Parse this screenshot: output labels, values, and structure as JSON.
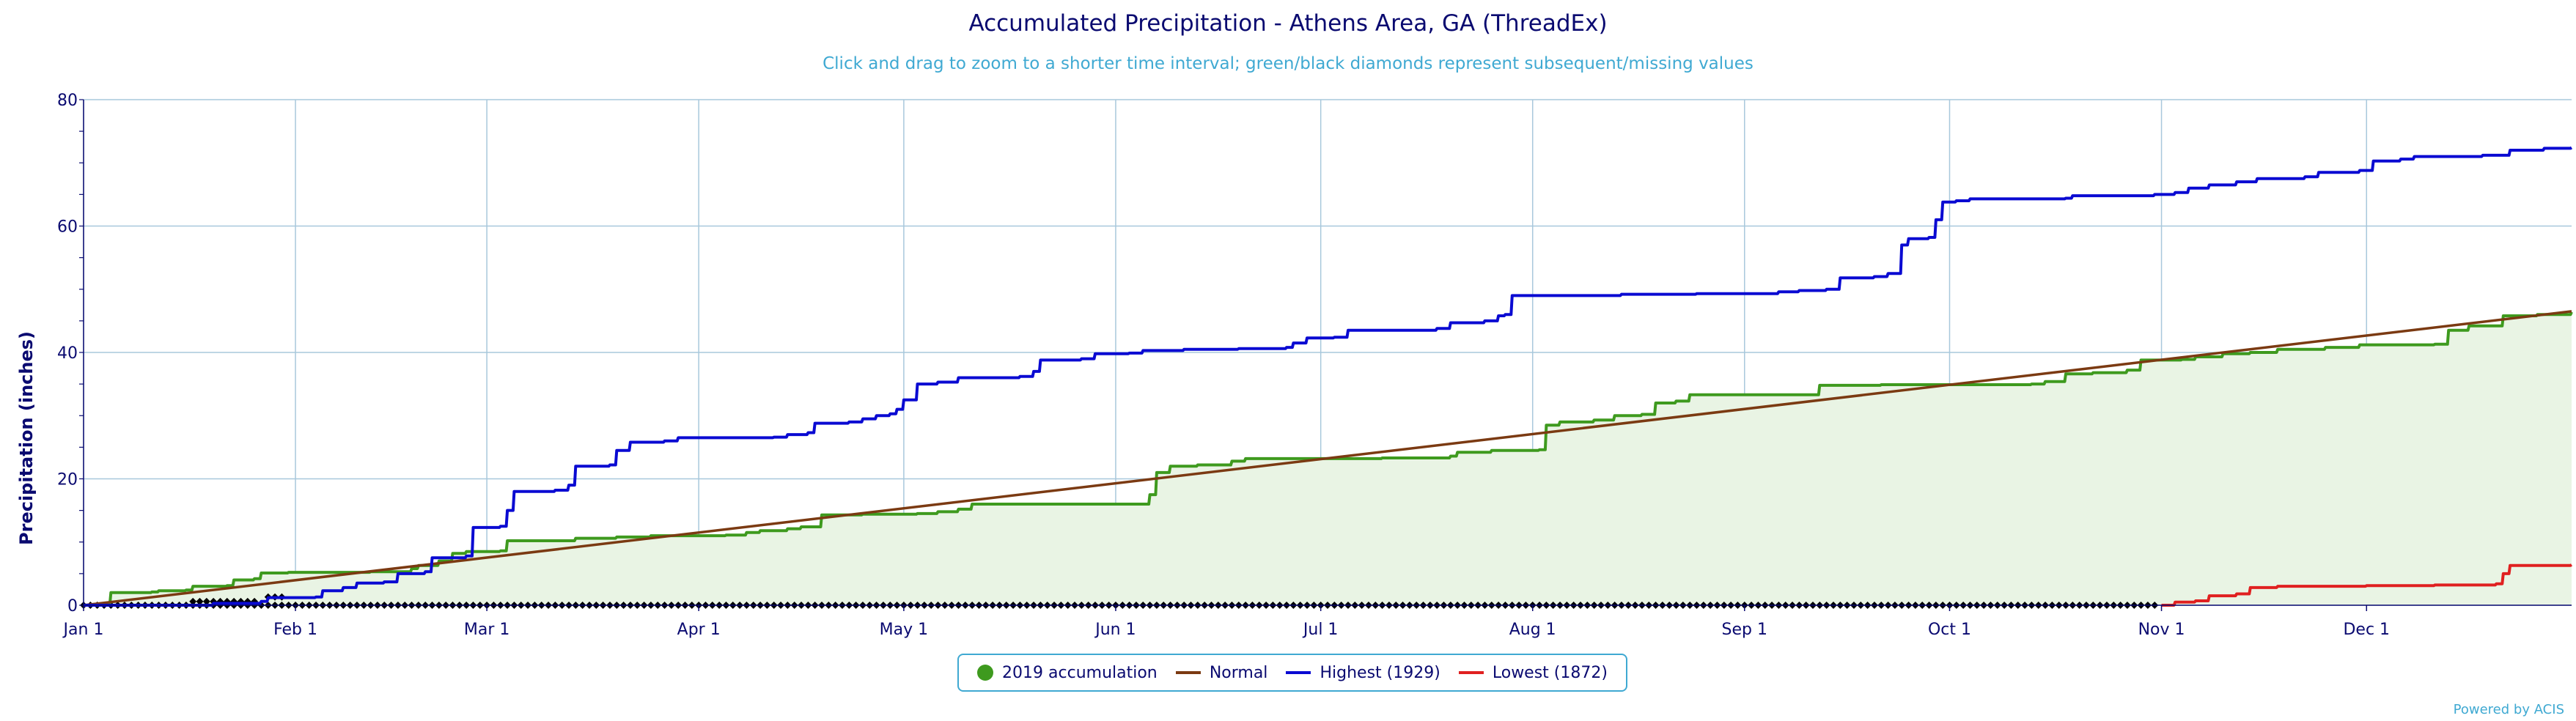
{
  "chart_data": {
    "type": "line",
    "title": "Accumulated Precipitation - Athens Area, GA (ThreadEx)",
    "subtitle": "Click and drag to zoom to a shorter time interval; green/black diamonds represent subsequent/missing values",
    "xlabel": "",
    "ylabel": "Precipitation (inches)",
    "ylim": [
      0,
      80
    ],
    "y_ticks": [
      0,
      20,
      40,
      60,
      80
    ],
    "x_ticks": [
      "Jan 1",
      "Feb 1",
      "Mar 1",
      "Apr 1",
      "May 1",
      "Jun 1",
      "Jul 1",
      "Aug 1",
      "Sep 1",
      "Oct 1",
      "Nov 1",
      "Dec 1"
    ],
    "grid": true,
    "legend_position": "bottom-center",
    "series": [
      {
        "name": "2019 accumulation",
        "color": "#3e9a1e",
        "points": [
          [
            "Jan 1",
            0.0
          ],
          [
            "Jan 4",
            0.1
          ],
          [
            "Jan 5",
            2.0
          ],
          [
            "Jan 11",
            2.1
          ],
          [
            "Jan 12",
            2.3
          ],
          [
            "Jan 16",
            2.4
          ],
          [
            "Jan 17",
            3.0
          ],
          [
            "Jan 22",
            3.1
          ],
          [
            "Jan 23",
            4.0
          ],
          [
            "Jan 26",
            4.2
          ],
          [
            "Jan 27",
            5.1
          ],
          [
            "Jan 31",
            5.2
          ],
          [
            "Feb 5",
            5.2
          ],
          [
            "Feb 12",
            5.3
          ],
          [
            "Feb 18",
            5.8
          ],
          [
            "Feb 19",
            6.3
          ],
          [
            "Feb 22",
            7.0
          ],
          [
            "Feb 24",
            8.2
          ],
          [
            "Feb 26",
            8.5
          ],
          [
            "Mar 3",
            8.6
          ],
          [
            "Mar 4",
            10.2
          ],
          [
            "Mar 14",
            10.6
          ],
          [
            "Mar 20",
            10.8
          ],
          [
            "Mar 25",
            11.0
          ],
          [
            "Apr 5",
            11.1
          ],
          [
            "Apr 8",
            11.5
          ],
          [
            "Apr 10",
            11.8
          ],
          [
            "Apr 14",
            12.1
          ],
          [
            "Apr 16",
            12.4
          ],
          [
            "Apr 19",
            14.3
          ],
          [
            "Apr 25",
            14.4
          ],
          [
            "May 3",
            14.5
          ],
          [
            "May 6",
            14.8
          ],
          [
            "May 9",
            15.2
          ],
          [
            "May 11",
            16.0
          ],
          [
            "May 31",
            16.0
          ],
          [
            "Jun 5",
            16.0
          ],
          [
            "Jun 6",
            17.5
          ],
          [
            "Jun 7",
            21.0
          ],
          [
            "Jun 9",
            22.0
          ],
          [
            "Jun 13",
            22.2
          ],
          [
            "Jun 18",
            22.8
          ],
          [
            "Jun 20",
            23.2
          ],
          [
            "Jul 4",
            23.2
          ],
          [
            "Jul 10",
            23.3
          ],
          [
            "Jul 20",
            23.6
          ],
          [
            "Jul 21",
            24.2
          ],
          [
            "Jul 26",
            24.5
          ],
          [
            "Aug 2",
            24.6
          ],
          [
            "Aug 3",
            28.5
          ],
          [
            "Aug 5",
            29.0
          ],
          [
            "Aug 10",
            29.3
          ],
          [
            "Aug 13",
            30.0
          ],
          [
            "Aug 17",
            30.2
          ],
          [
            "Aug 19",
            32.0
          ],
          [
            "Aug 22",
            32.3
          ],
          [
            "Aug 24",
            33.3
          ],
          [
            "Sep 10",
            33.3
          ],
          [
            "Sep 12",
            34.8
          ],
          [
            "Sep 21",
            34.9
          ],
          [
            "Oct 7",
            34.9
          ],
          [
            "Oct 13",
            35.0
          ],
          [
            "Oct 15",
            35.4
          ],
          [
            "Oct 18",
            36.6
          ],
          [
            "Oct 22",
            36.8
          ],
          [
            "Oct 27",
            37.2
          ],
          [
            "Oct 29",
            38.8
          ],
          [
            "Nov 4",
            38.9
          ],
          [
            "Nov 6",
            39.3
          ],
          [
            "Nov 10",
            39.8
          ],
          [
            "Nov 14",
            40.0
          ],
          [
            "Nov 18",
            40.5
          ],
          [
            "Nov 25",
            40.8
          ],
          [
            "Nov 30",
            41.2
          ],
          [
            "Dec 11",
            41.3
          ],
          [
            "Dec 13",
            43.5
          ],
          [
            "Dec 16",
            44.2
          ],
          [
            "Dec 21",
            45.8
          ],
          [
            "Dec 26",
            46.0
          ],
          [
            "Dec 31",
            46.4
          ]
        ]
      },
      {
        "name": "Normal",
        "color": "#7b3a12",
        "points": [
          [
            "Jan 1",
            0.0
          ],
          [
            "Dec 31",
            46.5
          ]
        ]
      },
      {
        "name": "Highest (1929)",
        "color": "#0a0ad2",
        "points": [
          [
            "Jan 1",
            0.0
          ],
          [
            "Jan 20",
            0.3
          ],
          [
            "Jan 27",
            0.6
          ],
          [
            "Jan 28",
            1.2
          ],
          [
            "Feb 4",
            1.3
          ],
          [
            "Feb 5",
            2.3
          ],
          [
            "Feb 8",
            2.8
          ],
          [
            "Feb 10",
            3.5
          ],
          [
            "Feb 14",
            3.7
          ],
          [
            "Feb 16",
            5.0
          ],
          [
            "Feb 20",
            5.3
          ],
          [
            "Feb 21",
            7.5
          ],
          [
            "Feb 26",
            7.8
          ],
          [
            "Feb 27",
            12.3
          ],
          [
            "Mar 3",
            12.5
          ],
          [
            "Mar 4",
            15.0
          ],
          [
            "Mar 5",
            18.0
          ],
          [
            "Mar 11",
            18.2
          ],
          [
            "Mar 13",
            19.0
          ],
          [
            "Mar 14",
            22.0
          ],
          [
            "Mar 19",
            22.2
          ],
          [
            "Mar 20",
            24.5
          ],
          [
            "Mar 22",
            25.8
          ],
          [
            "Mar 27",
            26.0
          ],
          [
            "Mar 29",
            26.5
          ],
          [
            "Apr 12",
            26.6
          ],
          [
            "Apr 14",
            27.0
          ],
          [
            "Apr 17",
            27.3
          ],
          [
            "Apr 18",
            28.8
          ],
          [
            "Apr 23",
            29.0
          ],
          [
            "Apr 25",
            29.5
          ],
          [
            "Apr 27",
            30.0
          ],
          [
            "Apr 29",
            30.3
          ],
          [
            "Apr 30",
            31.0
          ],
          [
            "May 1",
            32.5
          ],
          [
            "May 3",
            35.0
          ],
          [
            "May 6",
            35.3
          ],
          [
            "May 9",
            36.0
          ],
          [
            "May 18",
            36.2
          ],
          [
            "May 20",
            37.0
          ],
          [
            "May 21",
            38.8
          ],
          [
            "May 27",
            39.0
          ],
          [
            "May 29",
            39.8
          ],
          [
            "Jun 3",
            39.9
          ],
          [
            "Jun 5",
            40.3
          ],
          [
            "Jun 11",
            40.5
          ],
          [
            "Jun 19",
            40.6
          ],
          [
            "Jun 26",
            40.8
          ],
          [
            "Jun 27",
            41.5
          ],
          [
            "Jun 29",
            42.3
          ],
          [
            "Jul 3",
            42.4
          ],
          [
            "Jul 5",
            43.5
          ],
          [
            "Jul 18",
            43.8
          ],
          [
            "Jul 20",
            44.7
          ],
          [
            "Jul 25",
            45.0
          ],
          [
            "Jul 27",
            45.8
          ],
          [
            "Jul 28",
            46.0
          ],
          [
            "Jul 29",
            49.0
          ],
          [
            "Aug 12",
            49.0
          ],
          [
            "Aug 14",
            49.2
          ],
          [
            "Aug 25",
            49.3
          ],
          [
            "Sep 3",
            49.3
          ],
          [
            "Sep 6",
            49.6
          ],
          [
            "Sep 9",
            49.8
          ],
          [
            "Sep 13",
            50.0
          ],
          [
            "Sep 15",
            51.8
          ],
          [
            "Sep 20",
            52.0
          ],
          [
            "Sep 22",
            52.5
          ],
          [
            "Sep 24",
            57.0
          ],
          [
            "Sep 25",
            58.0
          ],
          [
            "Sep 28",
            58.2
          ],
          [
            "Sep 29",
            61.0
          ],
          [
            "Sep 30",
            63.8
          ],
          [
            "Oct 2",
            64.0
          ],
          [
            "Oct 4",
            64.3
          ],
          [
            "Oct 18",
            64.4
          ],
          [
            "Oct 19",
            64.8
          ],
          [
            "Oct 31",
            65.0
          ],
          [
            "Nov 3",
            65.3
          ],
          [
            "Nov 5",
            66.0
          ],
          [
            "Nov 8",
            66.5
          ],
          [
            "Nov 12",
            67.0
          ],
          [
            "Nov 15",
            67.5
          ],
          [
            "Nov 22",
            67.8
          ],
          [
            "Nov 24",
            68.5
          ],
          [
            "Nov 30",
            68.8
          ],
          [
            "Dec 2",
            70.3
          ],
          [
            "Dec 6",
            70.6
          ],
          [
            "Dec 8",
            71.0
          ],
          [
            "Dec 18",
            71.2
          ],
          [
            "Dec 22",
            72.0
          ],
          [
            "Dec 27",
            72.3
          ],
          [
            "Dec 31",
            72.4
          ]
        ]
      },
      {
        "name": "Lowest (1872)",
        "color": "#e02020",
        "points": [
          [
            "Nov 1",
            0.0
          ],
          [
            "Nov 3",
            0.5
          ],
          [
            "Nov 6",
            0.7
          ],
          [
            "Nov 8",
            1.5
          ],
          [
            "Nov 12",
            1.8
          ],
          [
            "Nov 14",
            2.8
          ],
          [
            "Nov 18",
            3.0
          ],
          [
            "Dec 1",
            3.1
          ],
          [
            "Dec 11",
            3.2
          ],
          [
            "Dec 20",
            3.4
          ],
          [
            "Dec 21",
            5.0
          ],
          [
            "Dec 22",
            6.3
          ],
          [
            "Dec 31",
            6.4
          ]
        ]
      }
    ],
    "missing_markers": {
      "color": "#000000",
      "main_range": [
        "Jan 1",
        "Oct 31"
      ],
      "raised": [
        [
          "Jan 17",
          0.6
        ],
        [
          "Jan 18",
          0.6
        ],
        [
          "Jan 19",
          0.6
        ],
        [
          "Jan 20",
          0.6
        ],
        [
          "Jan 21",
          0.6
        ],
        [
          "Jan 22",
          0.6
        ],
        [
          "Jan 23",
          0.6
        ],
        [
          "Jan 24",
          0.6
        ],
        [
          "Jan 25",
          0.6
        ],
        [
          "Jan 26",
          0.6
        ],
        [
          "Jan 28",
          1.3
        ],
        [
          "Jan 29",
          1.3
        ],
        [
          "Jan 30",
          1.3
        ]
      ]
    }
  },
  "credit": "Powered by ACIS"
}
